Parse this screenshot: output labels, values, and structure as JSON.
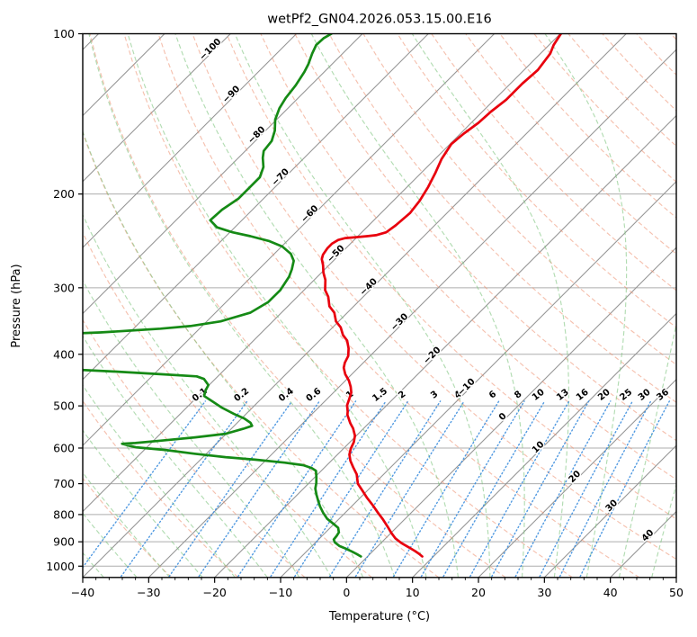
{
  "chart_data": {
    "type": "line",
    "variant": "skew_t_log_p_sounding",
    "title": "wetPf2_GN04.2026.053.15.00.E16",
    "xlabel": "Temperature (°C)",
    "ylabel": "Pressure (hPa)",
    "x_axis": {
      "min": -40,
      "max": 50,
      "tick_step": 10,
      "minor_tick_step": 2,
      "skew_degrees": 45,
      "tick_labels": [
        "−40",
        "−30",
        "−20",
        "−10",
        "0",
        "10",
        "20",
        "30",
        "40",
        "50"
      ]
    },
    "y_axis": {
      "scale": "log",
      "top": 100,
      "bottom": 1050,
      "ticks": [
        100,
        200,
        300,
        400,
        500,
        600,
        700,
        800,
        900,
        1000
      ],
      "tick_labels": [
        "100",
        "200",
        "300",
        "400",
        "500",
        "600",
        "700",
        "800",
        "900",
        "1000"
      ]
    },
    "legend": "none",
    "grid": "horizontal pressure lines + skewed isotherms",
    "series": [
      {
        "name": "temperature",
        "color": "#e8000d",
        "width": 2.7,
        "points_p_hpa_t_c": [
          [
            100,
            -49.9
          ],
          [
            105,
            -49.3
          ],
          [
            109,
            -48.5
          ],
          [
            117,
            -47.9
          ],
          [
            124,
            -48.2
          ],
          [
            133,
            -48.2
          ],
          [
            140,
            -48.7
          ],
          [
            147,
            -48.9
          ],
          [
            154,
            -49.5
          ],
          [
            161,
            -49.8
          ],
          [
            172,
            -49.0
          ],
          [
            183,
            -47.8
          ],
          [
            194,
            -46.8
          ],
          [
            206,
            -46.0
          ],
          [
            217,
            -45.6
          ],
          [
            229,
            -45.9
          ],
          [
            236,
            -46.3
          ],
          [
            239,
            -47.4
          ],
          [
            240,
            -48.6
          ],
          [
            241,
            -50.1
          ],
          [
            242,
            -51.6
          ],
          [
            244,
            -52.4
          ],
          [
            248,
            -52.8
          ],
          [
            253,
            -52.8
          ],
          [
            260,
            -52.5
          ],
          [
            265,
            -52.0
          ],
          [
            272,
            -50.9
          ],
          [
            281,
            -49.7
          ],
          [
            290,
            -48.3
          ],
          [
            303,
            -46.8
          ],
          [
            312,
            -45.3
          ],
          [
            325,
            -43.7
          ],
          [
            334,
            -42.0
          ],
          [
            347,
            -40.4
          ],
          [
            356,
            -38.8
          ],
          [
            368,
            -37.3
          ],
          [
            377,
            -35.8
          ],
          [
            390,
            -34.4
          ],
          [
            403,
            -33.3
          ],
          [
            415,
            -32.8
          ],
          [
            424,
            -32.2
          ],
          [
            436,
            -31.0
          ],
          [
            448,
            -29.5
          ],
          [
            460,
            -28.3
          ],
          [
            472,
            -27.3
          ],
          [
            486,
            -26.6
          ],
          [
            499,
            -26.0
          ],
          [
            512,
            -25.0
          ],
          [
            520,
            -24.5
          ],
          [
            539,
            -22.8
          ],
          [
            551,
            -21.6
          ],
          [
            569,
            -20.2
          ],
          [
            585,
            -19.4
          ],
          [
            601,
            -18.9
          ],
          [
            617,
            -18.2
          ],
          [
            634,
            -17.1
          ],
          [
            652,
            -15.7
          ],
          [
            672,
            -14.1
          ],
          [
            700,
            -12.5
          ],
          [
            722,
            -10.7
          ],
          [
            745,
            -8.9
          ],
          [
            768,
            -7.0
          ],
          [
            793,
            -5.1
          ],
          [
            818,
            -3.2
          ],
          [
            844,
            -1.4
          ],
          [
            867,
            0.1
          ],
          [
            887,
            1.5
          ],
          [
            905,
            3.1
          ],
          [
            922,
            4.9
          ],
          [
            937,
            6.4
          ],
          [
            948,
            7.4
          ],
          [
            959,
            8.3
          ]
        ]
      },
      {
        "name": "dewpoint",
        "color": "#158a15",
        "width": 2.7,
        "points_p_hpa_t_c": [
          [
            100,
            -84.7
          ],
          [
            102,
            -85.2
          ],
          [
            105,
            -85.3
          ],
          [
            109,
            -84.6
          ],
          [
            114,
            -83.6
          ],
          [
            118,
            -83.0
          ],
          [
            125,
            -82.3
          ],
          [
            132,
            -81.9
          ],
          [
            138,
            -81.3
          ],
          [
            145,
            -80.2
          ],
          [
            152,
            -78.6
          ],
          [
            159,
            -77.5
          ],
          [
            166,
            -77.2
          ],
          [
            171,
            -76.3
          ],
          [
            178,
            -74.8
          ],
          [
            186,
            -73.8
          ],
          [
            194,
            -73.8
          ],
          [
            204,
            -73.8
          ],
          [
            214,
            -74.6
          ],
          [
            224,
            -74.8
          ],
          [
            231,
            -72.7
          ],
          [
            236,
            -69.6
          ],
          [
            240,
            -66.3
          ],
          [
            245,
            -62.8
          ],
          [
            251,
            -59.9
          ],
          [
            259,
            -57.5
          ],
          [
            267,
            -56.0
          ],
          [
            277,
            -55.0
          ],
          [
            286,
            -54.3
          ],
          [
            303,
            -53.6
          ],
          [
            319,
            -53.6
          ],
          [
            334,
            -54.7
          ],
          [
            347,
            -57.9
          ],
          [
            354,
            -61.8
          ],
          [
            358,
            -65.9
          ],
          [
            361,
            -70.1
          ],
          [
            364,
            -74.5
          ],
          [
            366,
            -79.0
          ],
          [
            370,
            -83.5
          ],
          [
            380,
            -87.0
          ],
          [
            395,
            -88.5
          ],
          [
            408,
            -84.0
          ],
          [
            416,
            -78.5
          ],
          [
            424,
            -73.5
          ],
          [
            428,
            -71.6
          ],
          [
            431,
            -66.2
          ],
          [
            436,
            -59.0
          ],
          [
            440,
            -53.2
          ],
          [
            445,
            -51.7
          ],
          [
            457,
            -50.1
          ],
          [
            468,
            -49.7
          ],
          [
            479,
            -49.1
          ],
          [
            490,
            -47.1
          ],
          [
            504,
            -44.6
          ],
          [
            518,
            -41.8
          ],
          [
            528,
            -39.6
          ],
          [
            538,
            -38.0
          ],
          [
            545,
            -37.3
          ],
          [
            552,
            -38.2
          ],
          [
            564,
            -40.1
          ],
          [
            573,
            -44.2
          ],
          [
            580,
            -48.3
          ],
          [
            587,
            -52.4
          ],
          [
            589,
            -54.3
          ],
          [
            593,
            -53.2
          ],
          [
            598,
            -51.7
          ],
          [
            605,
            -46.8
          ],
          [
            615,
            -41.8
          ],
          [
            624,
            -36.6
          ],
          [
            631,
            -31.7
          ],
          [
            639,
            -26.8
          ],
          [
            646,
            -23.6
          ],
          [
            654,
            -21.9
          ],
          [
            662,
            -20.8
          ],
          [
            680,
            -19.8
          ],
          [
            698,
            -18.9
          ],
          [
            715,
            -18.2
          ],
          [
            734,
            -17.1
          ],
          [
            754,
            -15.9
          ],
          [
            772,
            -14.8
          ],
          [
            793,
            -13.4
          ],
          [
            815,
            -11.8
          ],
          [
            834,
            -10.0
          ],
          [
            847,
            -8.8
          ],
          [
            864,
            -8.0
          ],
          [
            877,
            -7.8
          ],
          [
            891,
            -7.7
          ],
          [
            902,
            -7.1
          ],
          [
            916,
            -5.9
          ],
          [
            927,
            -4.5
          ],
          [
            938,
            -3.2
          ],
          [
            949,
            -2.0
          ],
          [
            959,
            -1.0
          ]
        ]
      }
    ],
    "background_lines": {
      "isotherms": {
        "start_c": -130,
        "end_c": 50,
        "step_c": 10,
        "color": "#949494",
        "label_colors": {
          "negative": "#2a7ab5",
          "zero": "#8a8a8a",
          "positive": "#cf3333"
        },
        "labels": [
          {
            "t": -100,
            "p": 107
          },
          {
            "t": -90,
            "p": 130
          },
          {
            "t": -80,
            "p": 155
          },
          {
            "t": -70,
            "p": 186
          },
          {
            "t": -60,
            "p": 218
          },
          {
            "t": -50,
            "p": 259
          },
          {
            "t": -40,
            "p": 299
          },
          {
            "t": -30,
            "p": 348
          },
          {
            "t": -20,
            "p": 402
          },
          {
            "t": -10,
            "p": 461
          },
          {
            "t": 0,
            "p": 524
          },
          {
            "t": 10,
            "p": 598
          },
          {
            "t": 20,
            "p": 679
          },
          {
            "t": 30,
            "p": 770
          },
          {
            "t": 40,
            "p": 876
          }
        ]
      },
      "dry_adiabats": {
        "theta_start_c": -30,
        "theta_end_c": 200,
        "step_c": 10,
        "color": "#ec8e6d"
      },
      "moist_adiabats": {
        "thetaw_start_c": -55,
        "thetaw_end_c": 45,
        "step_c": 5,
        "color": "#7fc47f"
      },
      "mixing_ratio": {
        "values_g_kg": [
          0.1,
          0.2,
          0.4,
          0.6,
          1,
          1.5,
          2,
          3,
          4,
          6,
          8,
          10,
          13,
          16,
          20,
          25,
          30,
          36
        ],
        "label_pressure_hpa": 481,
        "top_pressure_hpa": 490,
        "bottom_pressure_hpa": 1045,
        "line_color": "#3d8ede",
        "label_color": "#3390e0"
      }
    }
  }
}
